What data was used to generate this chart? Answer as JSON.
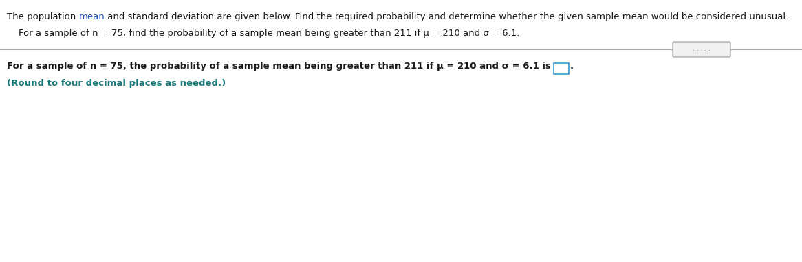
{
  "line1_part1": "The population ",
  "line1_part2": "mean",
  "line1_part3": " and standard deviation are given below. Find the required probability and determine whether the given sample mean would be considered unusual.",
  "line2": "    For a sample of n = 75, find the probability of a sample mean being greater than 211 if μ = 210 and σ = 6.1.",
  "line3": "For a sample of n = 75, the probability of a sample mean being greater than 211 if μ = 210 and σ = 6.1 is",
  "line4": "(Round to four decimal places as needed.)",
  "color_normal": "#1a1a1a",
  "color_blue": "#2255bb",
  "color_teal": "#1a7a7a",
  "background_color": "#ffffff",
  "separator_color": "#aaaaaa",
  "button_edge_color": "#999999",
  "button_face_color": "#f0f0f0",
  "box_edge_color": "#3399cc",
  "fontsize": 9.5,
  "fontsize_line2": 9.5,
  "fontsize_line3": 9.5,
  "fontsize_line4": 9.5
}
